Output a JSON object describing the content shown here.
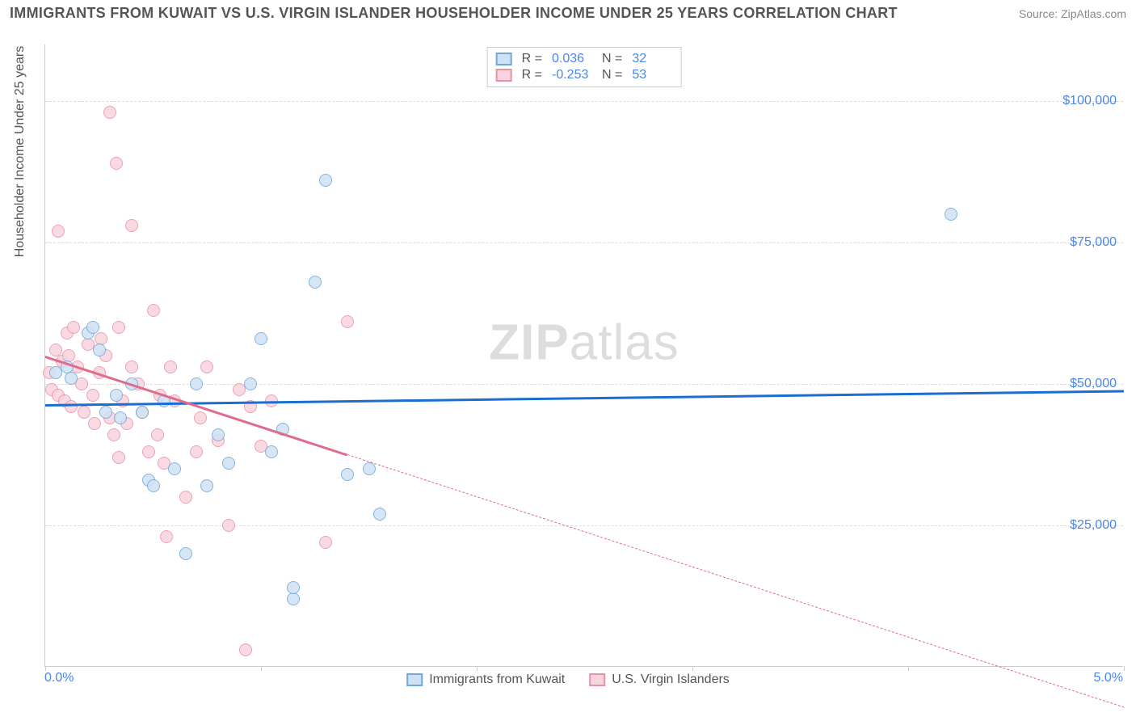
{
  "header": {
    "title": "IMMIGRANTS FROM KUWAIT VS U.S. VIRGIN ISLANDER HOUSEHOLDER INCOME UNDER 25 YEARS CORRELATION CHART",
    "source": "Source: ZipAtlas.com"
  },
  "chart": {
    "type": "scatter",
    "y_axis_title": "Householder Income Under 25 years",
    "xlim": [
      0,
      5
    ],
    "ylim": [
      0,
      110000
    ],
    "x_tick_labels": {
      "left": "0.0%",
      "right": "5.0%"
    },
    "x_ticks_pct": [
      0,
      20,
      40,
      60,
      80,
      100
    ],
    "y_gridlines": [
      25000,
      50000,
      75000,
      100000
    ],
    "y_tick_labels": [
      "$25,000",
      "$50,000",
      "$75,000",
      "$100,000"
    ],
    "background_color": "#ffffff",
    "grid_color": "#dddddd",
    "axis_color": "#cccccc",
    "tick_label_color": "#4a86e8",
    "watermark_text_bold": "ZIP",
    "watermark_text_rest": "atlas",
    "series": [
      {
        "name": "Immigrants from Kuwait",
        "fill": "#cfe2f3",
        "stroke": "#6fa8dc",
        "trend_color": "#1c6dd0",
        "points": [
          {
            "x": 0.05,
            "y": 52000
          },
          {
            "x": 0.1,
            "y": 53000
          },
          {
            "x": 0.12,
            "y": 51000
          },
          {
            "x": 0.2,
            "y": 59000
          },
          {
            "x": 0.22,
            "y": 60000
          },
          {
            "x": 0.25,
            "y": 56000
          },
          {
            "x": 0.28,
            "y": 45000
          },
          {
            "x": 0.33,
            "y": 48000
          },
          {
            "x": 0.35,
            "y": 44000
          },
          {
            "x": 0.4,
            "y": 50000
          },
          {
            "x": 0.45,
            "y": 45000
          },
          {
            "x": 0.48,
            "y": 33000
          },
          {
            "x": 0.5,
            "y": 32000
          },
          {
            "x": 0.55,
            "y": 47000
          },
          {
            "x": 0.6,
            "y": 35000
          },
          {
            "x": 0.65,
            "y": 20000
          },
          {
            "x": 0.7,
            "y": 50000
          },
          {
            "x": 0.75,
            "y": 32000
          },
          {
            "x": 0.8,
            "y": 41000
          },
          {
            "x": 0.85,
            "y": 36000
          },
          {
            "x": 0.95,
            "y": 50000
          },
          {
            "x": 1.0,
            "y": 58000
          },
          {
            "x": 1.05,
            "y": 38000
          },
          {
            "x": 1.1,
            "y": 42000
          },
          {
            "x": 1.15,
            "y": 12000
          },
          {
            "x": 1.15,
            "y": 14000
          },
          {
            "x": 1.25,
            "y": 68000
          },
          {
            "x": 1.3,
            "y": 86000
          },
          {
            "x": 1.4,
            "y": 34000
          },
          {
            "x": 1.5,
            "y": 35000
          },
          {
            "x": 1.55,
            "y": 27000
          },
          {
            "x": 4.2,
            "y": 80000
          }
        ],
        "trend": {
          "x1": 0,
          "y1": 46500,
          "x2": 5.0,
          "y2": 49000,
          "solid_end_x": 5.0
        }
      },
      {
        "name": "U.S. Virgin Islanders",
        "fill": "#f9d4de",
        "stroke": "#e892a8",
        "trend_color": "#e06c8b",
        "points": [
          {
            "x": 0.02,
            "y": 52000
          },
          {
            "x": 0.03,
            "y": 49000
          },
          {
            "x": 0.05,
            "y": 56000
          },
          {
            "x": 0.06,
            "y": 48000
          },
          {
            "x": 0.06,
            "y": 77000
          },
          {
            "x": 0.08,
            "y": 54000
          },
          {
            "x": 0.09,
            "y": 47000
          },
          {
            "x": 0.1,
            "y": 59000
          },
          {
            "x": 0.11,
            "y": 55000
          },
          {
            "x": 0.12,
            "y": 46000
          },
          {
            "x": 0.13,
            "y": 60000
          },
          {
            "x": 0.15,
            "y": 53000
          },
          {
            "x": 0.17,
            "y": 50000
          },
          {
            "x": 0.18,
            "y": 45000
          },
          {
            "x": 0.2,
            "y": 57000
          },
          {
            "x": 0.22,
            "y": 48000
          },
          {
            "x": 0.23,
            "y": 43000
          },
          {
            "x": 0.25,
            "y": 52000
          },
          {
            "x": 0.26,
            "y": 58000
          },
          {
            "x": 0.28,
            "y": 55000
          },
          {
            "x": 0.3,
            "y": 44000
          },
          {
            "x": 0.3,
            "y": 98000
          },
          {
            "x": 0.32,
            "y": 41000
          },
          {
            "x": 0.33,
            "y": 89000
          },
          {
            "x": 0.34,
            "y": 37000
          },
          {
            "x": 0.34,
            "y": 60000
          },
          {
            "x": 0.36,
            "y": 47000
          },
          {
            "x": 0.38,
            "y": 43000
          },
          {
            "x": 0.4,
            "y": 53000
          },
          {
            "x": 0.4,
            "y": 78000
          },
          {
            "x": 0.43,
            "y": 50000
          },
          {
            "x": 0.45,
            "y": 45000
          },
          {
            "x": 0.48,
            "y": 38000
          },
          {
            "x": 0.5,
            "y": 63000
          },
          {
            "x": 0.52,
            "y": 41000
          },
          {
            "x": 0.53,
            "y": 48000
          },
          {
            "x": 0.55,
            "y": 36000
          },
          {
            "x": 0.56,
            "y": 23000
          },
          {
            "x": 0.58,
            "y": 53000
          },
          {
            "x": 0.6,
            "y": 47000
          },
          {
            "x": 0.65,
            "y": 30000
          },
          {
            "x": 0.7,
            "y": 38000
          },
          {
            "x": 0.72,
            "y": 44000
          },
          {
            "x": 0.75,
            "y": 53000
          },
          {
            "x": 0.8,
            "y": 40000
          },
          {
            "x": 0.85,
            "y": 25000
          },
          {
            "x": 0.9,
            "y": 49000
          },
          {
            "x": 0.93,
            "y": 3000
          },
          {
            "x": 0.95,
            "y": 46000
          },
          {
            "x": 1.0,
            "y": 39000
          },
          {
            "x": 1.05,
            "y": 47000
          },
          {
            "x": 1.3,
            "y": 22000
          },
          {
            "x": 1.4,
            "y": 61000
          }
        ],
        "trend": {
          "x1": 0,
          "y1": 55000,
          "x2": 5.0,
          "y2": -7000,
          "solid_end_x": 1.4
        }
      }
    ],
    "stats": [
      {
        "series_idx": 0,
        "R": "0.036",
        "N": "32"
      },
      {
        "series_idx": 1,
        "R": "-0.253",
        "N": "53"
      }
    ]
  }
}
